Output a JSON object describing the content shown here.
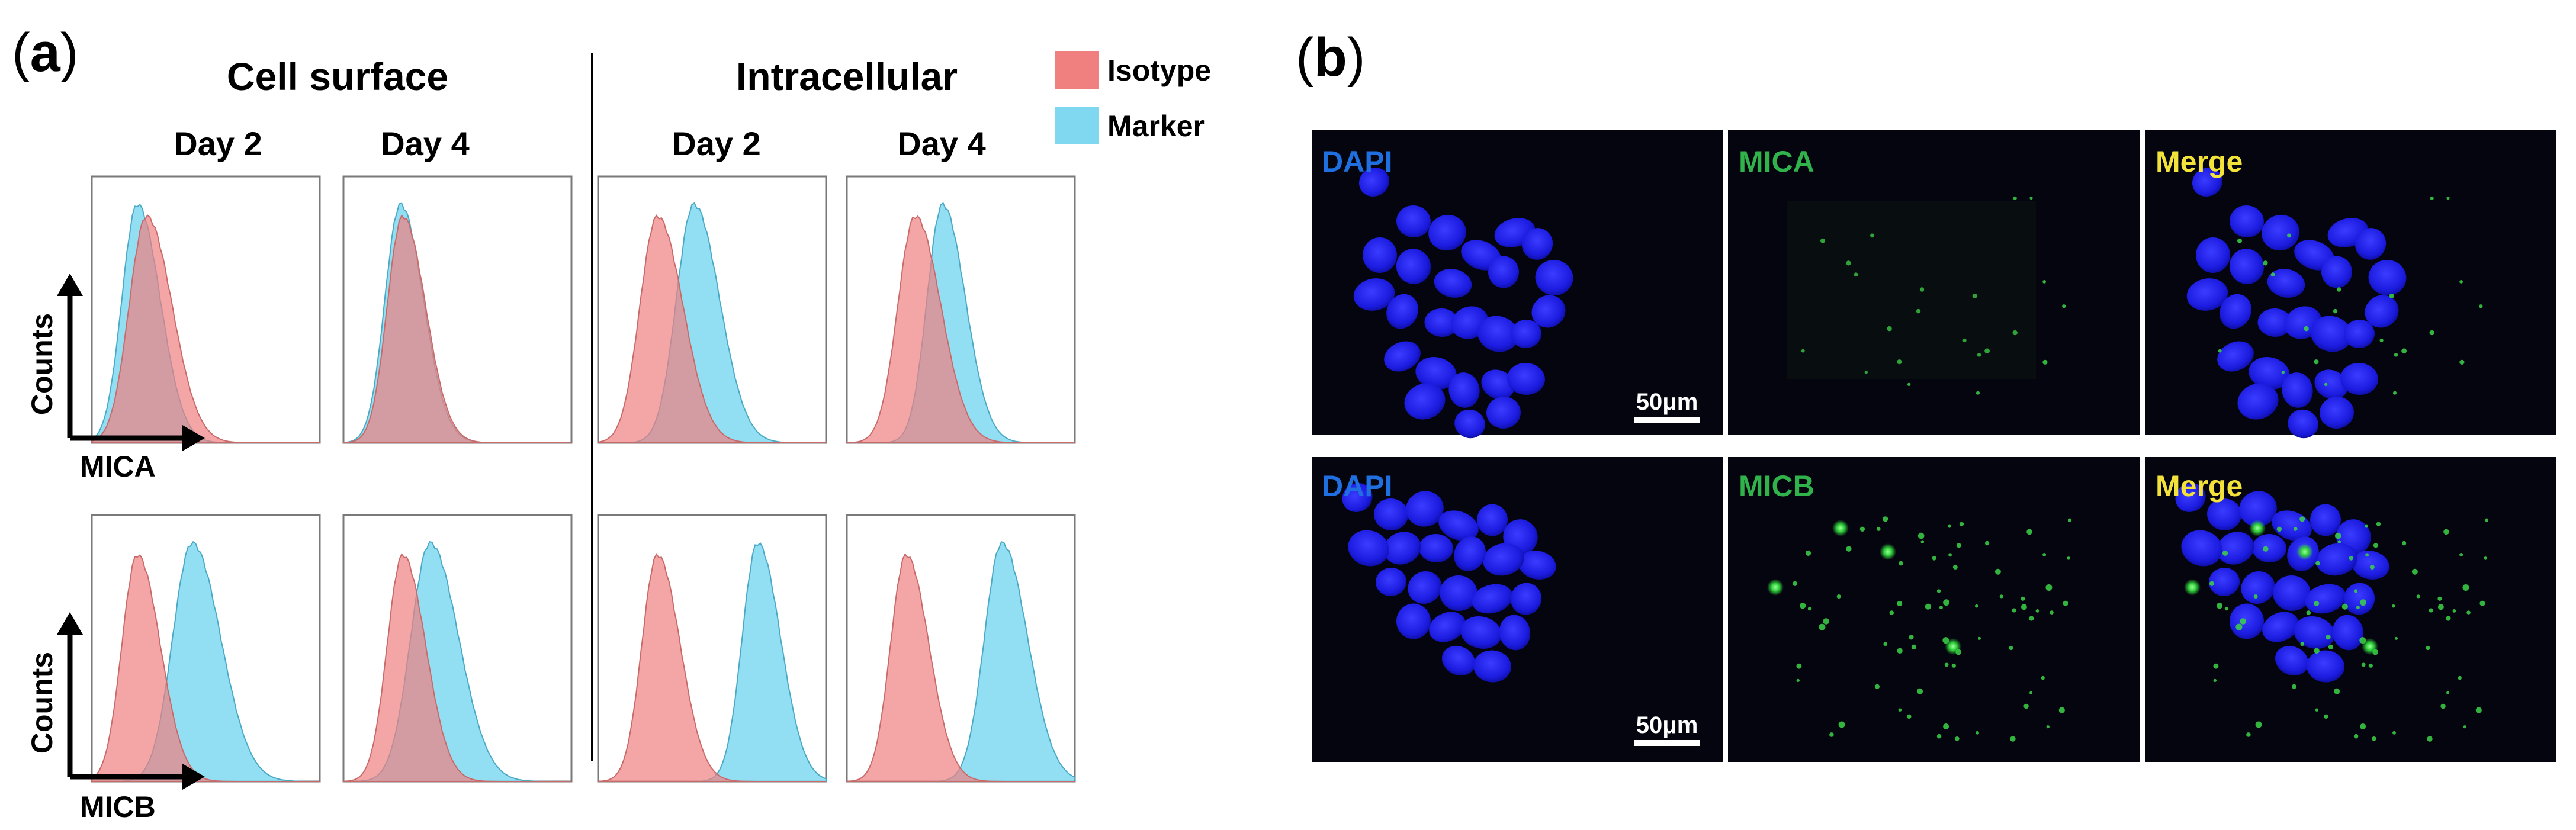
{
  "panel_a": {
    "label_open": "(",
    "label_letter": "a",
    "label_close": ")",
    "groups": [
      "Cell surface",
      "Intracellular"
    ],
    "days": [
      "Day 2",
      "Day 4",
      "Day 2",
      "Day 4"
    ],
    "y_axis_label": "Counts",
    "x_axis_labels": [
      "MICA",
      "MICB"
    ],
    "legend": [
      {
        "name": "Isotype",
        "color": "#f08080"
      },
      {
        "name": "Marker",
        "color": "#7fd8f0"
      }
    ]
  },
  "panel_b": {
    "label_open": "(",
    "label_letter": "b",
    "label_close": ")",
    "rows": [
      {
        "channels": [
          "DAPI",
          "MICA",
          "Merge"
        ],
        "scale_bar": "50μm"
      },
      {
        "channels": [
          "DAPI",
          "MICB",
          "Merge"
        ],
        "scale_bar": "50μm"
      }
    ],
    "channel_colors": {
      "DAPI": "#1f6fe0",
      "green": "#2fb34a",
      "Merge": "#f2e23a"
    }
  },
  "chart_data": {
    "type": "area",
    "description_colors": {
      "isotype": "#f08080",
      "marker": "#7fd8f0"
    },
    "panels": [
      {
        "marker": "MICA",
        "group": "Cell surface",
        "day": "Day 2",
        "isotype_peak": 0.24,
        "isotype_width": 0.09,
        "marker_peak": 0.2,
        "marker_width": 0.08
      },
      {
        "marker": "MICA",
        "group": "Cell surface",
        "day": "Day 4",
        "isotype_peak": 0.26,
        "isotype_width": 0.08,
        "marker_peak": 0.25,
        "marker_width": 0.08
      },
      {
        "marker": "MICA",
        "group": "Intracellular",
        "day": "Day 2",
        "isotype_peak": 0.26,
        "isotype_width": 0.09,
        "marker_peak": 0.42,
        "marker_width": 0.09
      },
      {
        "marker": "MICA",
        "group": "Intracellular",
        "day": "Day 4",
        "isotype_peak": 0.3,
        "isotype_width": 0.09,
        "marker_peak": 0.42,
        "marker_width": 0.08
      },
      {
        "marker": "MICB",
        "group": "Cell surface",
        "day": "Day 2",
        "isotype_peak": 0.2,
        "isotype_width": 0.08,
        "marker_peak": 0.44,
        "marker_width": 0.1
      },
      {
        "marker": "MICB",
        "group": "Cell surface",
        "day": "Day 4",
        "isotype_peak": 0.26,
        "isotype_width": 0.08,
        "marker_peak": 0.38,
        "marker_width": 0.1
      },
      {
        "marker": "MICB",
        "group": "Intracellular",
        "day": "Day 2",
        "isotype_peak": 0.26,
        "isotype_width": 0.08,
        "marker_peak": 0.7,
        "marker_width": 0.08
      },
      {
        "marker": "MICB",
        "group": "Intracellular",
        "day": "Day 4",
        "isotype_peak": 0.26,
        "isotype_width": 0.08,
        "marker_peak": 0.68,
        "marker_width": 0.09
      }
    ]
  }
}
